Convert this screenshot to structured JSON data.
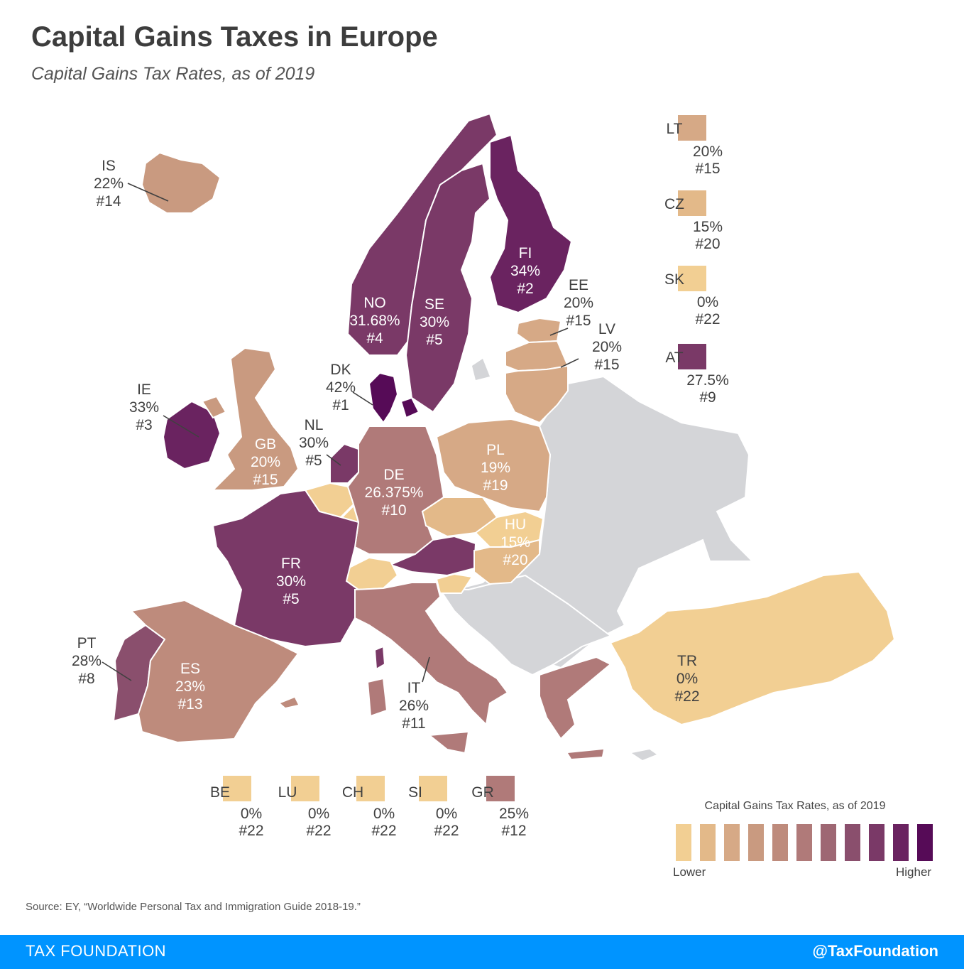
{
  "title": "Capital Gains Taxes in Europe",
  "subtitle": "Capital Gains Tax Rates, as of 2019",
  "colors": {
    "scale": [
      "#f2cf93",
      "#e3b989",
      "#d6a986",
      "#c99a80",
      "#be8b7c",
      "#b07a79",
      "#9e6773",
      "#8a4f6d",
      "#7a3967",
      "#6a2360",
      "#560b57"
    ],
    "no_data": "#d4d5d8",
    "border": "#ffffff",
    "footer": "#0094ff"
  },
  "map_labels": [
    {
      "code": "IS",
      "rate": "22%",
      "rank": "#14"
    },
    {
      "code": "NO",
      "rate": "31.68%",
      "rank": "#4"
    },
    {
      "code": "SE",
      "rate": "30%",
      "rank": "#5"
    },
    {
      "code": "FI",
      "rate": "34%",
      "rank": "#2"
    },
    {
      "code": "EE",
      "rate": "20%",
      "rank": "#15"
    },
    {
      "code": "LV",
      "rate": "20%",
      "rank": "#15"
    },
    {
      "code": "DK",
      "rate": "42%",
      "rank": "#1"
    },
    {
      "code": "IE",
      "rate": "33%",
      "rank": "#3"
    },
    {
      "code": "GB",
      "rate": "20%",
      "rank": "#15"
    },
    {
      "code": "NL",
      "rate": "30%",
      "rank": "#5"
    },
    {
      "code": "DE",
      "rate": "26.375%",
      "rank": "#10"
    },
    {
      "code": "PL",
      "rate": "19%",
      "rank": "#19"
    },
    {
      "code": "HU",
      "rate": "15%",
      "rank": "#20"
    },
    {
      "code": "FR",
      "rate": "30%",
      "rank": "#5"
    },
    {
      "code": "PT",
      "rate": "28%",
      "rank": "#8"
    },
    {
      "code": "ES",
      "rate": "23%",
      "rank": "#13"
    },
    {
      "code": "IT",
      "rate": "26%",
      "rank": "#11"
    },
    {
      "code": "TR",
      "rate": "0%",
      "rank": "#22"
    }
  ],
  "side_legend": [
    {
      "code": "LT",
      "rate": "20%",
      "rank": "#15"
    },
    {
      "code": "CZ",
      "rate": "15%",
      "rank": "#20"
    },
    {
      "code": "SK",
      "rate": "0%",
      "rank": "#22"
    },
    {
      "code": "AT",
      "rate": "27.5%",
      "rank": "#9"
    }
  ],
  "bottom_legend": [
    {
      "code": "BE",
      "rate": "0%",
      "rank": "#22"
    },
    {
      "code": "LU",
      "rate": "0%",
      "rank": "#22"
    },
    {
      "code": "CH",
      "rate": "0%",
      "rank": "#22"
    },
    {
      "code": "SI",
      "rate": "0%",
      "rank": "#22"
    },
    {
      "code": "GR",
      "rate": "25%",
      "rank": "#12"
    }
  ],
  "scale_legend": {
    "title": "Capital Gains Tax Rates, as of 2019",
    "low_label": "Lower",
    "high_label": "Higher"
  },
  "source": "Source: EY, “Worldwide Personal Tax and Immigration Guide 2018-19.”",
  "footer": {
    "left": "TAX FOUNDATION",
    "right": "@TaxFoundation"
  }
}
